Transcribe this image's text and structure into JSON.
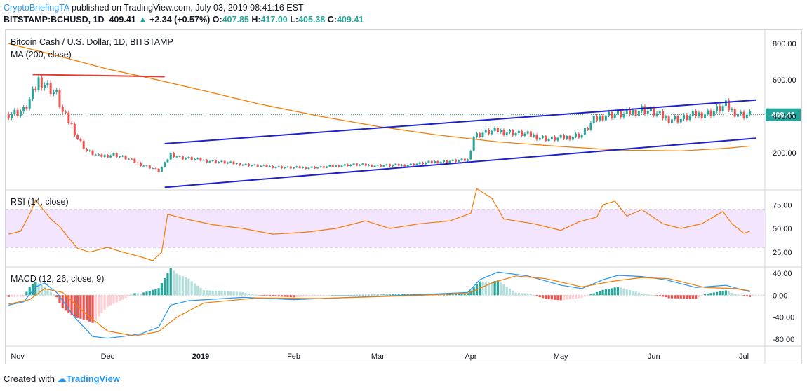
{
  "header": {
    "author": "CryptoBriefingTA",
    "published_text": "published on TradingView.com, July 03, 2019 08:41:16 EST",
    "symbol": "BITSTAMP:BCHUSD, 1D",
    "last": "409.41",
    "arrow": "▲",
    "change": "+2.34 (+0.57%)",
    "o_label": "O:",
    "o_value": "407.85",
    "h_label": "H:",
    "h_value": "417.00",
    "l_label": "L:",
    "l_value": "405.38",
    "c_label": "C:",
    "c_value": "409.41"
  },
  "panes": {
    "price_title": "Bitcoin Cash / U.S. Dollar, 1D, BITSTAMP",
    "ma_label": "MA (200, close)",
    "rsi_label": "RSI (14, close)",
    "macd_label": "MACD (12, 26, close, 9)"
  },
  "footer": {
    "created_with": "Created with",
    "brand": "TradingView"
  },
  "colors": {
    "up": "#26a69a",
    "down": "#ef5350",
    "ma": "#f57c00",
    "channel": "#1e22c8",
    "resistance": "#e53935",
    "rsi": "#f57c00",
    "macd": "#2196f3",
    "signal": "#f57c00",
    "price_badge": "#26a69a"
  },
  "chart_data": [
    {
      "type": "candlestick",
      "title": "Bitcoin Cash / U.S. Dollar, 1D, BITSTAMP",
      "x_ticks": [
        "Nov",
        "Dec",
        "2019",
        "Feb",
        "Mar",
        "Apr",
        "May",
        "Jun",
        "Jul"
      ],
      "y_ticks": [
        "800.00",
        "600.00",
        "400.00",
        "200.00"
      ],
      "ylim": [
        0,
        870
      ],
      "last_price_label": "409.41",
      "price_path": [
        [
          "2018-10-29",
          415
        ],
        [
          "2018-11-03",
          430
        ],
        [
          "2018-11-06",
          520
        ],
        [
          "2018-11-08",
          600
        ],
        [
          "2018-11-10",
          580
        ],
        [
          "2018-11-14",
          520
        ],
        [
          "2018-11-16",
          420
        ],
        [
          "2018-11-19",
          350
        ],
        [
          "2018-11-21",
          280
        ],
        [
          "2018-11-24",
          210
        ],
        [
          "2018-11-28",
          180
        ],
        [
          "2018-12-03",
          190
        ],
        [
          "2018-12-08",
          165
        ],
        [
          "2018-12-12",
          135
        ],
        [
          "2018-12-16",
          115
        ],
        [
          "2018-12-18",
          100
        ],
        [
          "2018-12-20",
          140
        ],
        [
          "2018-12-22",
          195
        ],
        [
          "2018-12-25",
          175
        ],
        [
          "2019-01-01",
          160
        ],
        [
          "2019-01-10",
          145
        ],
        [
          "2019-01-20",
          128
        ],
        [
          "2019-01-31",
          118
        ],
        [
          "2019-02-10",
          120
        ],
        [
          "2019-02-20",
          135
        ],
        [
          "2019-02-28",
          130
        ],
        [
          "2019-03-10",
          132
        ],
        [
          "2019-03-20",
          150
        ],
        [
          "2019-03-31",
          160
        ],
        [
          "2019-04-02",
          290
        ],
        [
          "2019-04-05",
          310
        ],
        [
          "2019-04-10",
          320
        ],
        [
          "2019-04-20",
          300
        ],
        [
          "2019-04-27",
          275
        ],
        [
          "2019-05-01",
          280
        ],
        [
          "2019-05-08",
          300
        ],
        [
          "2019-05-12",
          380
        ],
        [
          "2019-05-16",
          410
        ],
        [
          "2019-05-22",
          410
        ],
        [
          "2019-05-28",
          440
        ],
        [
          "2019-06-01",
          420
        ],
        [
          "2019-06-05",
          390
        ],
        [
          "2019-06-10",
          385
        ],
        [
          "2019-06-15",
          410
        ],
        [
          "2019-06-20",
          420
        ],
        [
          "2019-06-25",
          460
        ],
        [
          "2019-06-27",
          430
        ],
        [
          "2019-06-30",
          410
        ],
        [
          "2019-07-03",
          409
        ]
      ],
      "ma200": [
        [
          "2018-10-29",
          800
        ],
        [
          "2018-11-15",
          730
        ],
        [
          "2018-12-01",
          660
        ],
        [
          "2018-12-15",
          610
        ],
        [
          "2019-01-01",
          545
        ],
        [
          "2019-01-20",
          470
        ],
        [
          "2019-02-10",
          400
        ],
        [
          "2019-03-01",
          345
        ],
        [
          "2019-03-20",
          300
        ],
        [
          "2019-04-10",
          260
        ],
        [
          "2019-05-01",
          235
        ],
        [
          "2019-05-20",
          215
        ],
        [
          "2019-06-10",
          210
        ],
        [
          "2019-06-25",
          225
        ],
        [
          "2019-07-03",
          237
        ]
      ],
      "trendlines": [
        {
          "name": "resistance",
          "from": [
            "2018-11-06",
            630
          ],
          "to": [
            "2018-12-20",
            618
          ]
        },
        {
          "name": "channel-upper",
          "from": [
            "2018-12-20",
            250
          ],
          "to": [
            "2019-07-05",
            490
          ]
        },
        {
          "name": "channel-lower",
          "from": [
            "2018-12-20",
            10
          ],
          "to": [
            "2019-07-05",
            280
          ]
        }
      ]
    },
    {
      "type": "line",
      "title": "RSI (14, close)",
      "y_ticks": [
        "75.00",
        "50.00",
        "25.00"
      ],
      "ylim": [
        10,
        90
      ],
      "band": [
        30,
        70
      ],
      "series": [
        {
          "name": "RSI",
          "values": [
            [
              "2018-10-29",
              44
            ],
            [
              "2018-11-02",
              47
            ],
            [
              "2018-11-05",
              65
            ],
            [
              "2018-11-07",
              80
            ],
            [
              "2018-11-09",
              72
            ],
            [
              "2018-11-12",
              60
            ],
            [
              "2018-11-15",
              52
            ],
            [
              "2018-11-18",
              40
            ],
            [
              "2018-11-21",
              29
            ],
            [
              "2018-11-25",
              25
            ],
            [
              "2018-12-01",
              30
            ],
            [
              "2018-12-06",
              25
            ],
            [
              "2018-12-12",
              20
            ],
            [
              "2018-12-16",
              16
            ],
            [
              "2018-12-19",
              25
            ],
            [
              "2018-12-21",
              65
            ],
            [
              "2018-12-27",
              60
            ],
            [
              "2019-01-05",
              54
            ],
            [
              "2019-01-15",
              50
            ],
            [
              "2019-01-25",
              44
            ],
            [
              "2019-02-05",
              46
            ],
            [
              "2019-02-15",
              50
            ],
            [
              "2019-02-25",
              58
            ],
            [
              "2019-03-05",
              50
            ],
            [
              "2019-03-15",
              55
            ],
            [
              "2019-03-25",
              58
            ],
            [
              "2019-04-01",
              66
            ],
            [
              "2019-04-03",
              92
            ],
            [
              "2019-04-08",
              82
            ],
            [
              "2019-04-12",
              60
            ],
            [
              "2019-04-22",
              55
            ],
            [
              "2019-05-01",
              48
            ],
            [
              "2019-05-07",
              57
            ],
            [
              "2019-05-13",
              62
            ],
            [
              "2019-05-15",
              75
            ],
            [
              "2019-05-19",
              79
            ],
            [
              "2019-05-23",
              63
            ],
            [
              "2019-05-28",
              70
            ],
            [
              "2019-06-04",
              55
            ],
            [
              "2019-06-10",
              50
            ],
            [
              "2019-06-17",
              55
            ],
            [
              "2019-06-24",
              68
            ],
            [
              "2019-06-27",
              55
            ],
            [
              "2019-07-01",
              45
            ],
            [
              "2019-07-03",
              47
            ]
          ]
        }
      ]
    },
    {
      "type": "macd",
      "title": "MACD (12, 26, close, 9)",
      "y_ticks": [
        "40.00",
        "0.00",
        "-40.00",
        "-80.00"
      ],
      "ylim": [
        -90,
        50
      ],
      "series": [
        {
          "name": "MACD",
          "values": [
            [
              "2018-10-29",
              -18
            ],
            [
              "2018-11-03",
              -12
            ],
            [
              "2018-11-07",
              15
            ],
            [
              "2018-11-10",
              22
            ],
            [
              "2018-11-14",
              5
            ],
            [
              "2018-11-20",
              -40
            ],
            [
              "2018-11-26",
              -75
            ],
            [
              "2018-12-01",
              -78
            ],
            [
              "2018-12-06",
              -75
            ],
            [
              "2018-12-12",
              -70
            ],
            [
              "2018-12-18",
              -58
            ],
            [
              "2018-12-22",
              -18
            ],
            [
              "2018-12-28",
              -10
            ],
            [
              "2019-01-15",
              -4
            ],
            [
              "2019-02-01",
              -8
            ],
            [
              "2019-02-20",
              -4
            ],
            [
              "2019-03-10",
              0
            ],
            [
              "2019-03-31",
              5
            ],
            [
              "2019-04-04",
              28
            ],
            [
              "2019-04-10",
              42
            ],
            [
              "2019-04-20",
              35
            ],
            [
              "2019-05-01",
              18
            ],
            [
              "2019-05-08",
              12
            ],
            [
              "2019-05-15",
              28
            ],
            [
              "2019-05-20",
              36
            ],
            [
              "2019-05-28",
              34
            ],
            [
              "2019-06-05",
              28
            ],
            [
              "2019-06-15",
              14
            ],
            [
              "2019-06-25",
              18
            ],
            [
              "2019-07-03",
              6
            ]
          ]
        },
        {
          "name": "Signal",
          "values": [
            [
              "2018-10-29",
              -16
            ],
            [
              "2018-11-05",
              -8
            ],
            [
              "2018-11-10",
              12
            ],
            [
              "2018-11-16",
              5
            ],
            [
              "2018-11-24",
              -35
            ],
            [
              "2018-12-01",
              -65
            ],
            [
              "2018-12-10",
              -74
            ],
            [
              "2018-12-18",
              -66
            ],
            [
              "2018-12-24",
              -40
            ],
            [
              "2019-01-02",
              -14
            ],
            [
              "2019-01-20",
              -5
            ],
            [
              "2019-02-10",
              -6
            ],
            [
              "2019-03-10",
              -1
            ],
            [
              "2019-03-31",
              3
            ],
            [
              "2019-04-08",
              22
            ],
            [
              "2019-04-16",
              35
            ],
            [
              "2019-04-26",
              30
            ],
            [
              "2019-05-08",
              15
            ],
            [
              "2019-05-18",
              25
            ],
            [
              "2019-05-28",
              32
            ],
            [
              "2019-06-06",
              30
            ],
            [
              "2019-06-18",
              14
            ],
            [
              "2019-06-28",
              12
            ],
            [
              "2019-07-03",
              8
            ]
          ]
        }
      ]
    }
  ]
}
